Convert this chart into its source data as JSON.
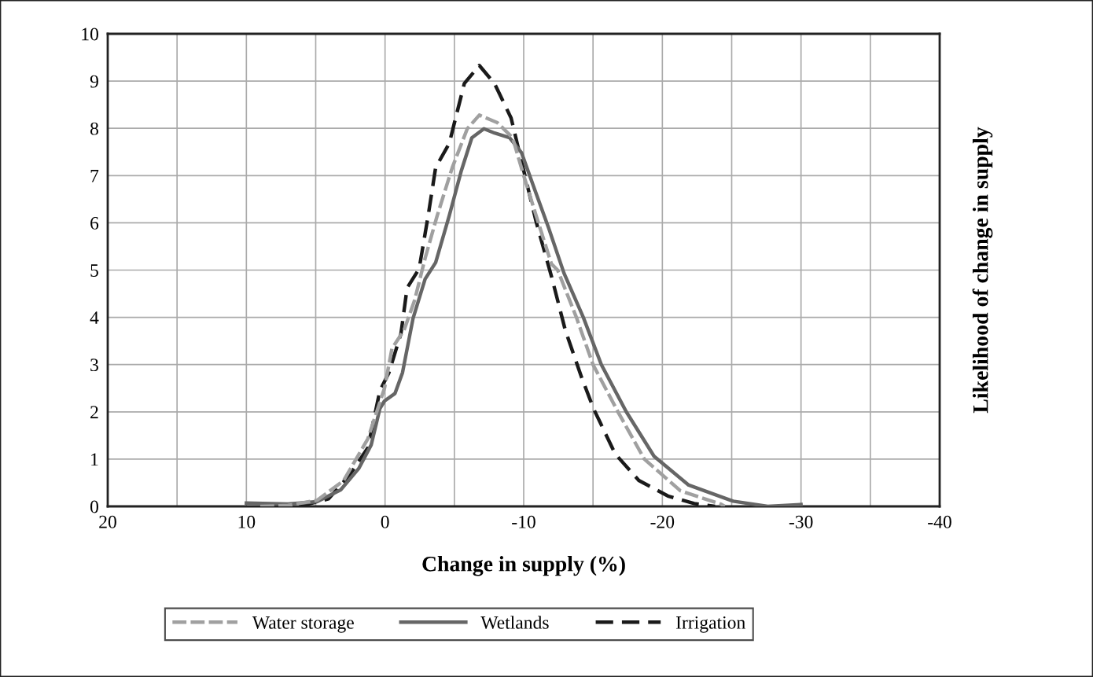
{
  "chart_data": {
    "type": "line",
    "xlabel": "Change in supply (%)",
    "ylabel": "Likelihood of change in supply",
    "xlim": [
      20,
      -40
    ],
    "ylim": [
      0,
      10
    ],
    "xticks": [
      20,
      {
        "value": 15,
        "label": null
      },
      10,
      {
        "value": 5,
        "label": null
      },
      0,
      {
        "value": -5,
        "label": null
      },
      -10,
      {
        "value": -15,
        "label": null
      },
      -20,
      {
        "value": -25,
        "label": null
      },
      -30,
      {
        "value": -35,
        "label": null
      },
      -40
    ],
    "yticks": [
      0,
      1,
      2,
      3,
      4,
      5,
      6,
      7,
      8,
      9,
      10
    ],
    "grid": true,
    "legend": "bottom",
    "marker": "none",
    "series": [
      {
        "name": "Water storage",
        "color": "#a0a0a0",
        "line_style": "dashed",
        "x": [
          9,
          7,
          4.9,
          3.0,
          1.24,
          0.04,
          -0.5,
          -1.37,
          -2.13,
          -2.89,
          -3.76,
          -4.85,
          -5.93,
          -6.8,
          -8.1,
          -9.2,
          -9.96,
          -10.9,
          -12.0,
          -12.45,
          -13.8,
          -15.0,
          -16.8,
          -18.7,
          -21.3,
          -24.2,
          -24.5
        ],
        "values": [
          0,
          0.02,
          0.13,
          0.54,
          1.43,
          2.5,
          3.34,
          3.73,
          4.36,
          5.25,
          6.15,
          7.17,
          7.99,
          8.28,
          8.12,
          7.8,
          7.04,
          6.15,
          5.13,
          5.0,
          4.0,
          3.0,
          2.0,
          1.0,
          0.33,
          0.05,
          0
        ]
      },
      {
        "name": "Wetlands",
        "color": "#666666",
        "line_style": "solid",
        "x": [
          10,
          7,
          4.9,
          3.2,
          1.9,
          1.0,
          0.37,
          0.04,
          -0.72,
          -1.26,
          -2.02,
          -2.89,
          -3.65,
          -4.63,
          -5.5,
          -6.26,
          -7.13,
          -7.9,
          -8.98,
          -9.85,
          -10.7,
          -11.8,
          -12.9,
          -14.3,
          -15.6,
          -17.4,
          -19.4,
          -21.9,
          -25.1,
          -27.6,
          -30
        ],
        "values": [
          0.07,
          0.05,
          0.1,
          0.35,
          0.8,
          1.3,
          2.07,
          2.23,
          2.39,
          2.83,
          3.98,
          4.81,
          5.16,
          6.15,
          7.1,
          7.8,
          7.99,
          7.9,
          7.8,
          7.48,
          6.78,
          5.89,
          4.94,
          4.0,
          3.0,
          2.0,
          1.06,
          0.45,
          0.11,
          0,
          0.04
        ]
      },
      {
        "name": "Irrigation",
        "color": "#1a1a1a",
        "line_style": "dashed",
        "x": [
          6.2,
          4.07,
          2.54,
          1.24,
          0.37,
          -0.28,
          -1.15,
          -1.59,
          -2.46,
          -3.11,
          -3.65,
          -4.63,
          -5.17,
          -5.72,
          -6.8,
          -7.89,
          -9.09,
          -9.85,
          -10.9,
          -12.0,
          -13.0,
          -14.2,
          -15.05,
          -16.6,
          -18.3,
          -20.4,
          -22.3,
          -23.8
        ],
        "values": [
          0,
          0.16,
          0.67,
          1.24,
          2.45,
          2.83,
          3.66,
          4.62,
          5.03,
          6.15,
          7.17,
          7.68,
          8.31,
          8.95,
          9.33,
          8.95,
          8.22,
          7.29,
          6.02,
          4.87,
          3.73,
          2.71,
          2.06,
          1.11,
          0.55,
          0.22,
          0.06,
          0
        ]
      }
    ]
  }
}
